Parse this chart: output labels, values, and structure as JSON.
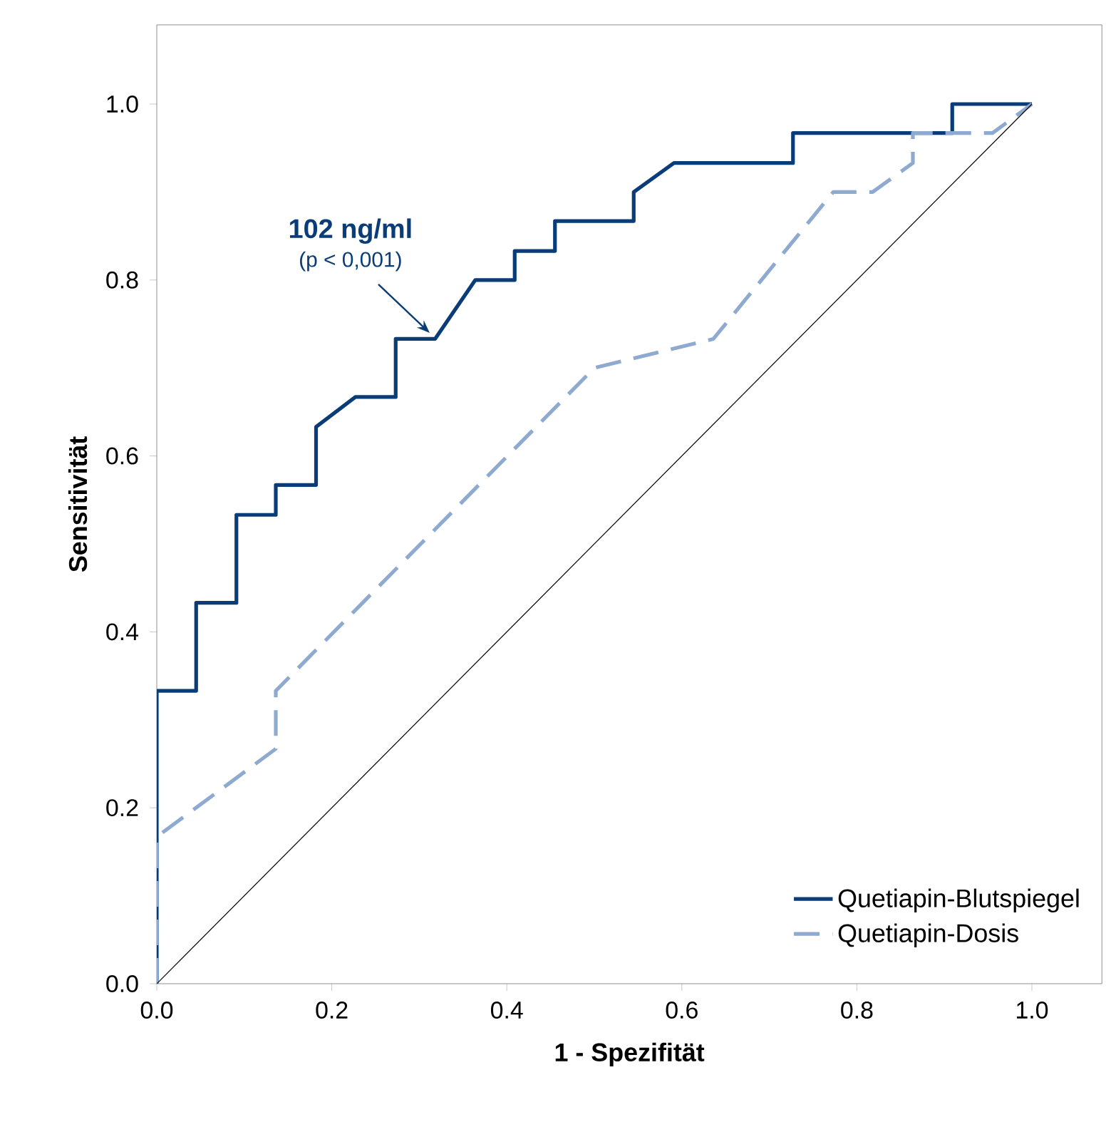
{
  "chart_data": {
    "type": "line",
    "xlabel": "1 - Spezifität",
    "ylabel": "Sensitivität",
    "xlim": [
      0,
      1.08
    ],
    "ylim": [
      0,
      1.09
    ],
    "xticks": [
      {
        "value": 0,
        "label": "0.0"
      },
      {
        "value": 0.2,
        "label": "0.2"
      },
      {
        "value": 0.4,
        "label": "0.4"
      },
      {
        "value": 0.6,
        "label": "0.6"
      },
      {
        "value": 0.8,
        "label": "0.8"
      },
      {
        "value": 1,
        "label": "1.0"
      }
    ],
    "yticks": [
      {
        "value": 0,
        "label": "0.0"
      },
      {
        "value": 0.2,
        "label": "0.2"
      },
      {
        "value": 0.4,
        "label": "0.4"
      },
      {
        "value": 0.6,
        "label": "0.6"
      },
      {
        "value": 0.8,
        "label": "0.8"
      },
      {
        "value": 1,
        "label": "1.0"
      }
    ],
    "grid": false,
    "legend": "bottom right",
    "annotations": [
      "102 ng/ml",
      "(p < 0,001)"
    ],
    "series": [
      {
        "name": "Quetiapin-Blutspiegel",
        "color": "#0a3d78",
        "line_style": "solid",
        "x": [
          0,
          0,
          0.045,
          0.045,
          0.091,
          0.091,
          0.136,
          0.136,
          0.182,
          0.182,
          0.227,
          0.273,
          0.273,
          0.318,
          0.364,
          0.409,
          0.409,
          0.455,
          0.455,
          0.545,
          0.545,
          0.591,
          0.727,
          0.727,
          0.909,
          0.909,
          1
        ],
        "values": [
          0,
          0.333,
          0.333,
          0.433,
          0.433,
          0.533,
          0.533,
          0.567,
          0.567,
          0.633,
          0.667,
          0.667,
          0.733,
          0.733,
          0.8,
          0.8,
          0.833,
          0.833,
          0.867,
          0.867,
          0.9,
          0.933,
          0.933,
          0.967,
          0.967,
          1,
          1
        ]
      },
      {
        "name": "Quetiapin-Dosis",
        "color": "#8eaad0",
        "line_style": "dashed",
        "x": [
          0,
          0,
          0.136,
          0.136,
          0.5,
          0.636,
          0.773,
          0.818,
          0.864,
          0.864,
          0.955,
          1
        ],
        "values": [
          0,
          0.167,
          0.267,
          0.333,
          0.7,
          0.733,
          0.9,
          0.9,
          0.933,
          0.967,
          0.967,
          1
        ]
      },
      {
        "color": "#000000",
        "line_style": "solid",
        "x": [
          0,
          1
        ],
        "values": [
          0,
          1
        ]
      }
    ]
  }
}
